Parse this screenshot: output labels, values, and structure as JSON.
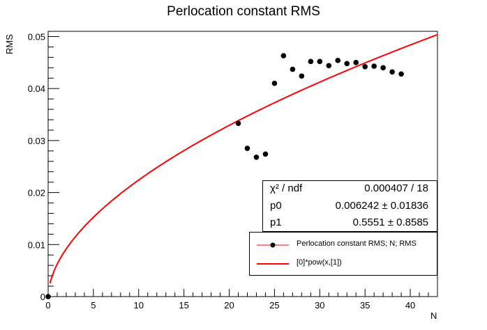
{
  "chart_data": {
    "type": "scatter",
    "title": "Perlocation constant RMS",
    "xlabel": "N",
    "ylabel": "RMS",
    "xlim": [
      0,
      43
    ],
    "ylim": [
      0,
      0.051
    ],
    "xticks": [
      0,
      5,
      10,
      15,
      20,
      25,
      30,
      35,
      40
    ],
    "xtick_labels": [
      "0",
      "5",
      "10",
      "15",
      "20",
      "25",
      "30",
      "35",
      "40"
    ],
    "yticks": [
      0,
      0.01,
      0.02,
      0.03,
      0.04,
      0.05
    ],
    "ytick_labels": [
      "0",
      "0.01",
      "0.02",
      "0.03",
      "0.04",
      "0.05"
    ],
    "grid": false,
    "legend_position": "bottom-right",
    "series": [
      {
        "name": "Perlocation constant RMS; N; RMS",
        "kind": "points",
        "color": "#000000",
        "points": [
          [
            0,
            0.0
          ],
          [
            21,
            0.0333
          ],
          [
            22,
            0.0285
          ],
          [
            23,
            0.0268
          ],
          [
            24,
            0.0274
          ],
          [
            25,
            0.041
          ],
          [
            26,
            0.0463
          ],
          [
            27,
            0.0437
          ],
          [
            28,
            0.0424
          ],
          [
            29,
            0.0452
          ],
          [
            30,
            0.0452
          ],
          [
            31,
            0.0444
          ],
          [
            32,
            0.0454
          ],
          [
            33,
            0.0448
          ],
          [
            34,
            0.045
          ],
          [
            35,
            0.0442
          ],
          [
            36,
            0.0443
          ],
          [
            37,
            0.044
          ],
          [
            38,
            0.0432
          ],
          [
            39,
            0.0428
          ]
        ]
      },
      {
        "name": "[0]*pow(x,[1])",
        "kind": "function",
        "color": "#ff0000",
        "p0": 0.006242,
        "p1": 0.5551,
        "x_range": [
          0.2,
          43
        ]
      }
    ],
    "fit_stats": [
      {
        "key": "χ² / ndf",
        "value": "0.000407 / 18"
      },
      {
        "key": "p0",
        "value": "0.006242 ± 0.01836"
      },
      {
        "key": "p1",
        "value": "0.5551 ± 0.8585"
      }
    ]
  }
}
